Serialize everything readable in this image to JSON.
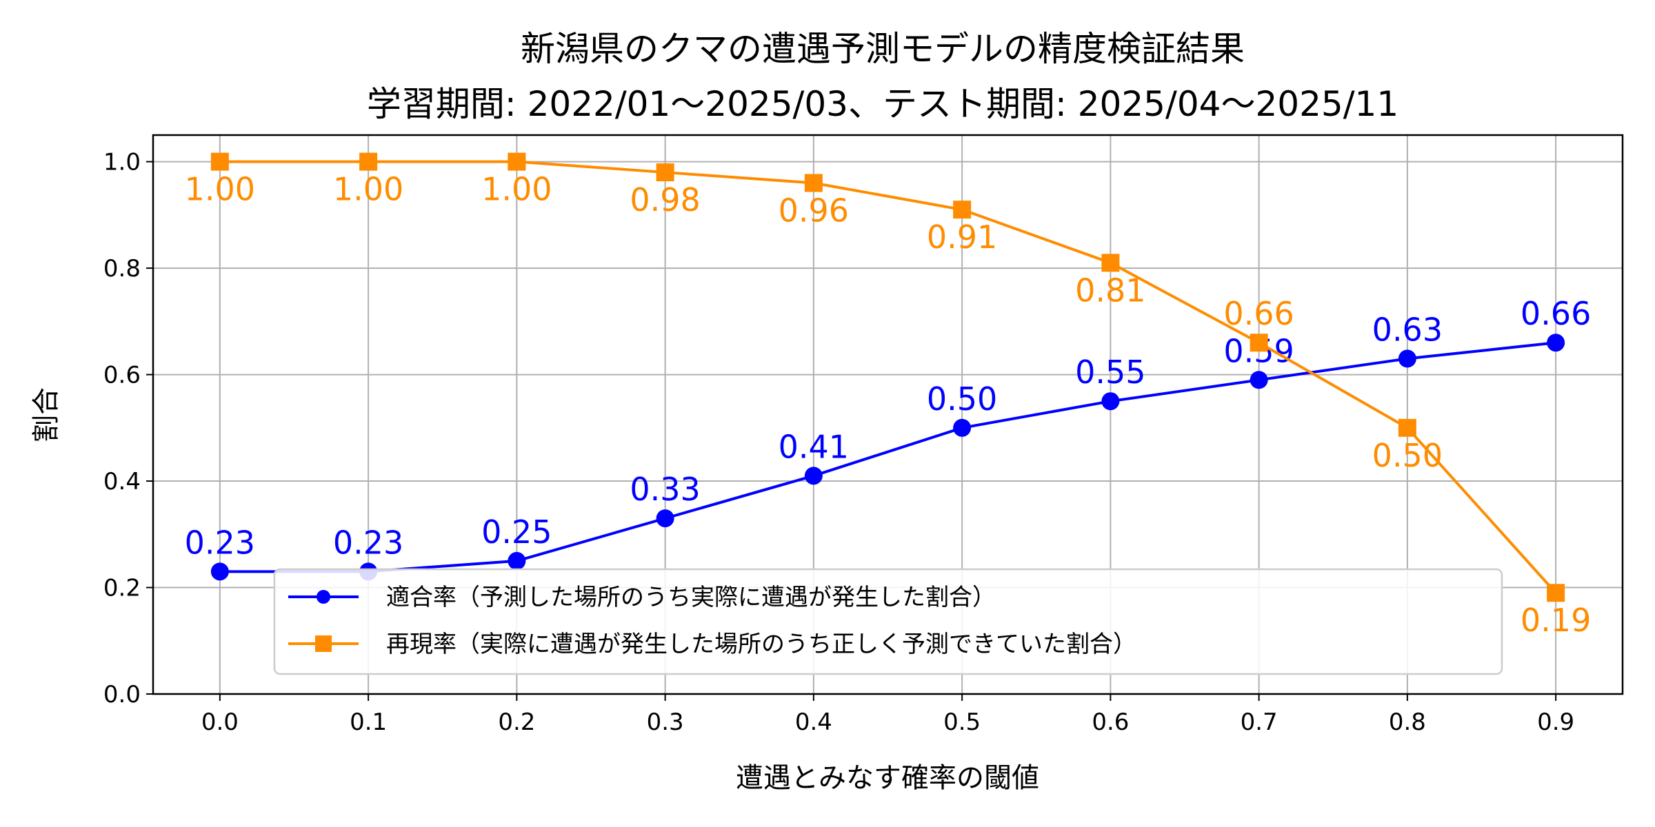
{
  "chart_data": {
    "type": "line",
    "title": "新潟県のクマの遭遇予測モデルの精度検証結果",
    "subtitle": "学習期間: 2022/01〜2025/03、テスト期間: 2025/04〜2025/11",
    "xlabel": "遭遇とみなす確率の閾値",
    "ylabel": "割合",
    "x": [
      0.0,
      0.1,
      0.2,
      0.3,
      0.4,
      0.5,
      0.6,
      0.7,
      0.8,
      0.9
    ],
    "xticks": [
      "0.0",
      "0.1",
      "0.2",
      "0.3",
      "0.4",
      "0.5",
      "0.6",
      "0.7",
      "0.8",
      "0.9"
    ],
    "yticks": [
      "0.0",
      "0.2",
      "0.4",
      "0.6",
      "0.8",
      "1.0"
    ],
    "xlim": [
      -0.045,
      0.945
    ],
    "ylim": [
      0.0,
      1.05
    ],
    "grid": true,
    "legend_position": "lower-center",
    "series": [
      {
        "name": "適合率（予測した場所のうち実際に遭遇が発生した割合）",
        "color": "#0000ff",
        "marker": "circle",
        "label_position": "above",
        "values": [
          0.23,
          0.23,
          0.25,
          0.33,
          0.41,
          0.5,
          0.55,
          0.59,
          0.63,
          0.66
        ],
        "labels": [
          "0.23",
          "0.23",
          "0.25",
          "0.33",
          "0.41",
          "0.50",
          "0.55",
          "0.59",
          "0.63",
          "0.66"
        ]
      },
      {
        "name": "再現率（実際に遭遇が発生した場所のうち正しく予測できていた割合）",
        "color": "#ff8c00",
        "marker": "square",
        "label_position": "below",
        "values": [
          1.0,
          1.0,
          1.0,
          0.98,
          0.96,
          0.91,
          0.81,
          0.66,
          0.5,
          0.19
        ],
        "labels": [
          "1.00",
          "1.00",
          "1.00",
          "0.98",
          "0.96",
          "0.91",
          "0.81",
          "0.66",
          "0.50",
          "0.19"
        ]
      }
    ]
  }
}
